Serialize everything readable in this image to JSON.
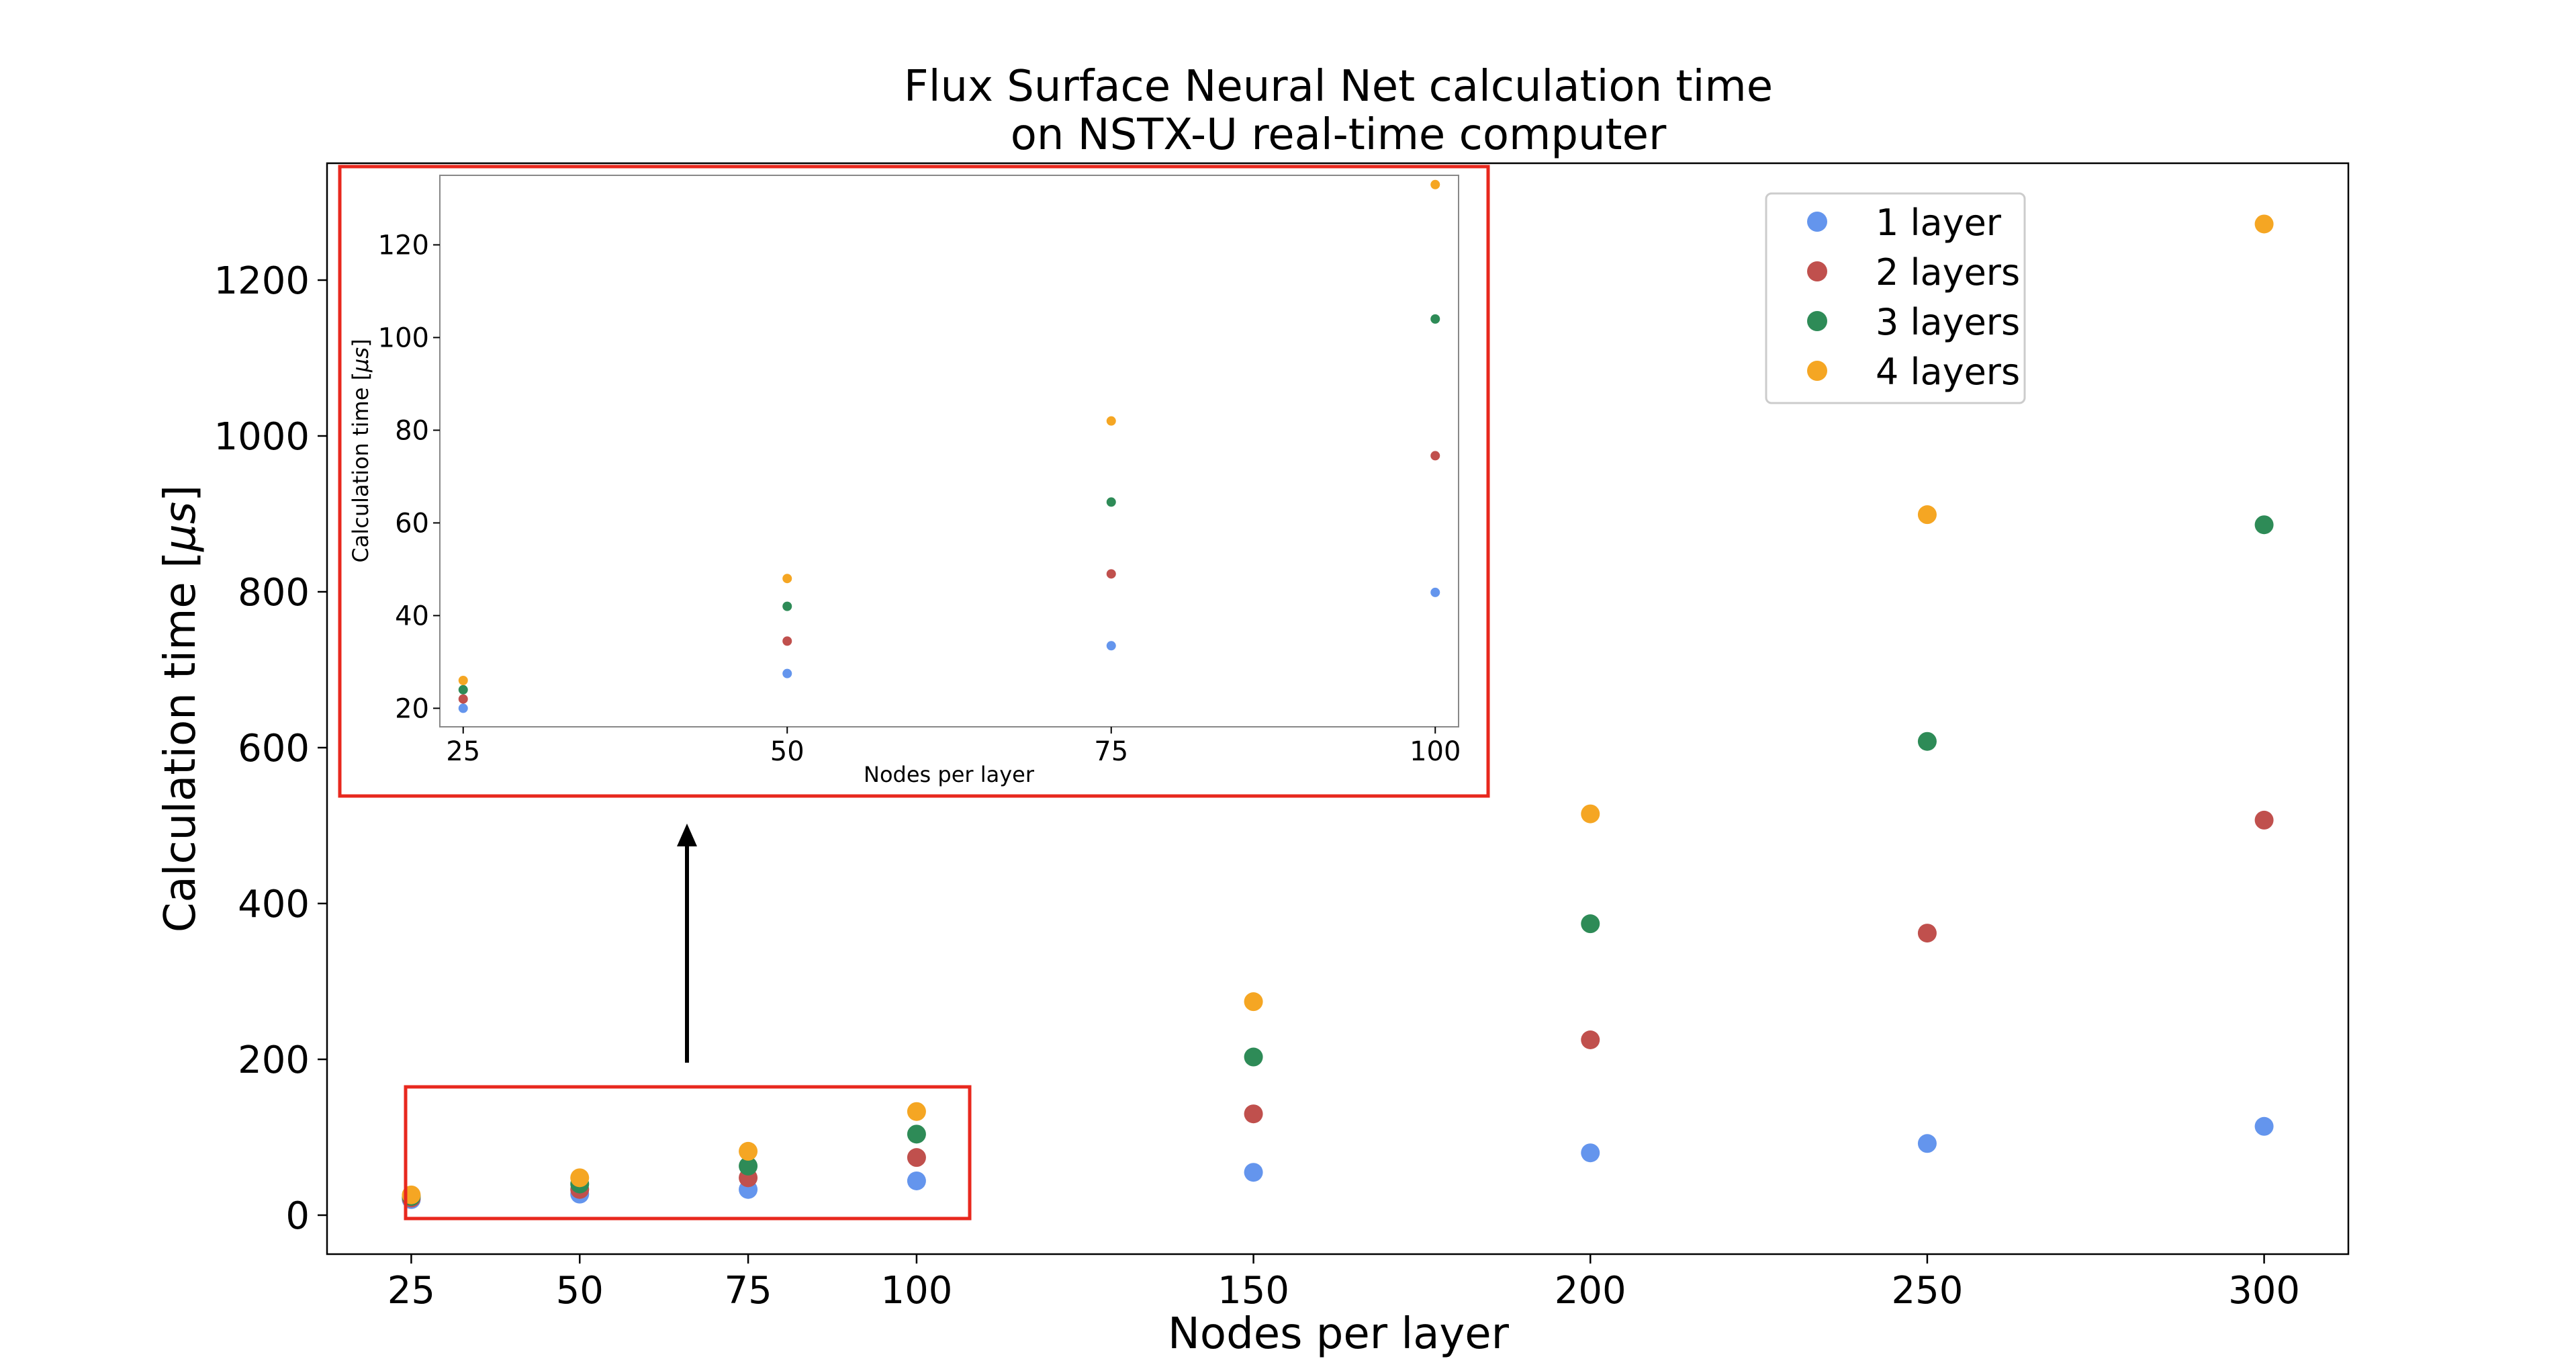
{
  "chart_data": [
    {
      "type": "scatter",
      "title": "Flux Surface Neural Net calculation time\non NSTX-U real-time computer",
      "xlabel": "Nodes per layer",
      "ylabel": "Calculation time [$\\mu s$]",
      "xlim": [
        12.5,
        312.5
      ],
      "ylim": [
        -50,
        1350
      ],
      "xticks": [
        25,
        50,
        75,
        100,
        150,
        200,
        250,
        300
      ],
      "yticks": [
        0,
        200,
        400,
        600,
        800,
        1000,
        1200
      ],
      "grid": false,
      "legend_position": "top-right",
      "x": [
        25,
        50,
        75,
        100,
        150,
        200,
        250,
        300
      ],
      "series": [
        {
          "name": "1 layer",
          "color": "#6495ED",
          "values": [
            20,
            27,
            33,
            44,
            55,
            80,
            92,
            114
          ]
        },
        {
          "name": "2 layers",
          "color": "#C0504D",
          "values": [
            22,
            33,
            48,
            74,
            130,
            225,
            362,
            507
          ]
        },
        {
          "name": "3 layers",
          "color": "#2E8B57",
          "values": [
            24,
            40,
            63,
            104,
            203,
            374,
            608,
            886
          ]
        },
        {
          "name": "4 layers",
          "color": "#F5A623",
          "values": [
            26,
            48,
            82,
            133,
            274,
            515,
            899,
            1272
          ]
        }
      ],
      "annotation": "red box around 25–100 region with arrow pointing to inset"
    },
    {
      "type": "scatter",
      "title": "",
      "xlabel": "Nodes per layer",
      "ylabel": "Calculation time [$\\mu s$]",
      "xlim": [
        23.2,
        101.8
      ],
      "ylim": [
        16,
        135
      ],
      "xticks": [
        25,
        50,
        75,
        100
      ],
      "yticks": [
        20,
        40,
        60,
        80,
        100,
        120
      ],
      "grid": false,
      "x": [
        25,
        50,
        75,
        100
      ],
      "series": [
        {
          "name": "1 layer",
          "color": "#6495ED",
          "values": [
            20,
            27.5,
            33.5,
            45
          ]
        },
        {
          "name": "2 layers",
          "color": "#C0504D",
          "values": [
            22,
            34.5,
            49,
            74.5
          ]
        },
        {
          "name": "3 layers",
          "color": "#2E8B57",
          "values": [
            24,
            42,
            64.5,
            104
          ]
        },
        {
          "name": "4 layers",
          "color": "#F5A623",
          "values": [
            26,
            48,
            82,
            133
          ]
        }
      ]
    }
  ]
}
